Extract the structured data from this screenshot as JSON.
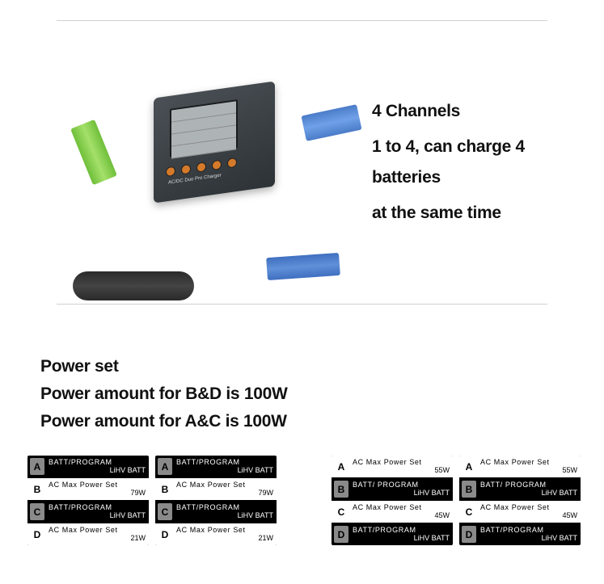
{
  "hero": {
    "heading1": "4  Channels",
    "heading2": "1 to 4, can charge 4 batteries",
    "heading3": "at the same time"
  },
  "power": {
    "heading1": "Power set",
    "heading2": "Power amount for B&D is 100W",
    "heading3": "Power amount for A&C is 100W"
  },
  "panels": {
    "left": [
      {
        "rows": [
          {
            "chan": "A",
            "badge": "grey",
            "hl": false,
            "line1": "BATT/PROGRAM",
            "line2": "LiHV BATT"
          },
          {
            "chan": "B",
            "badge": "white",
            "hl": true,
            "line1": "AC Max Power Set",
            "line2": "79W"
          },
          {
            "chan": "C",
            "badge": "grey",
            "hl": false,
            "line1": "BATT/PROGRAM",
            "line2": "LiHV BATT"
          },
          {
            "chan": "D",
            "badge": "white",
            "hl": true,
            "line1": "AC  Max  Power  Set",
            "line2": "21W"
          }
        ]
      },
      {
        "rows": [
          {
            "chan": "A",
            "badge": "grey",
            "hl": false,
            "line1": "BATT/PROGRAM",
            "line2": "LiHV BATT"
          },
          {
            "chan": "B",
            "badge": "white",
            "hl": true,
            "line1": "AC Max Power Set",
            "line2": "79W"
          },
          {
            "chan": "C",
            "badge": "grey",
            "hl": false,
            "line1": "BATT/PROGRAM",
            "line2": "LiHV BATT"
          },
          {
            "chan": "D",
            "badge": "white",
            "hl": true,
            "line1": "AC  Max  Power  Set",
            "line2": "21W"
          }
        ]
      }
    ],
    "right": [
      {
        "rows": [
          {
            "chan": "A",
            "badge": "white",
            "hl": true,
            "line1": "AC  Max  Power  Set",
            "line2": "55W"
          },
          {
            "chan": "B",
            "badge": "grey",
            "hl": false,
            "line1": "BATT/ PROGRAM",
            "line2": "LiHV BATT"
          },
          {
            "chan": "C",
            "badge": "white",
            "hl": true,
            "line1": "AC  Max  Power  Set",
            "line2": "45W"
          },
          {
            "chan": "D",
            "badge": "grey",
            "hl": false,
            "line1": "BATT/PROGRAM",
            "line2": "LiHV BATT"
          }
        ]
      },
      {
        "rows": [
          {
            "chan": "A",
            "badge": "white",
            "hl": true,
            "line1": "AC  Max  Power  Set",
            "line2": "55W"
          },
          {
            "chan": "B",
            "badge": "grey",
            "hl": false,
            "line1": "BATT/ PROGRAM",
            "line2": "LiHV BATT"
          },
          {
            "chan": "C",
            "badge": "white",
            "hl": true,
            "line1": "AC  Max  Power  Set",
            "line2": "45W"
          },
          {
            "chan": "D",
            "badge": "grey",
            "hl": false,
            "line1": "BATT/PROGRAM",
            "line2": "LiHV BATT"
          }
        ]
      }
    ]
  },
  "colors": {
    "text": "#111111",
    "panel_bg": "#000000",
    "panel_hl_bg": "#ffffff",
    "badge_white": "#ffffff",
    "badge_grey": "#8a8a8a"
  }
}
